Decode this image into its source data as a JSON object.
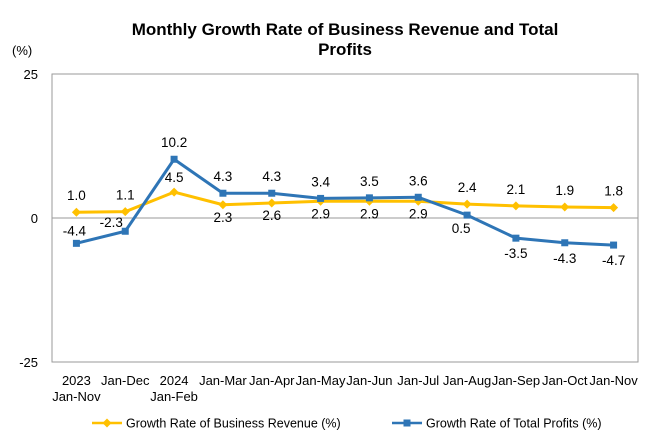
{
  "chart_data": {
    "type": "line",
    "title_lines": [
      "Monthly Growth Rate of Business Revenue and Total",
      "Profits"
    ],
    "ylabel": "(%)",
    "ylim": [
      -25,
      25
    ],
    "yticks": [
      "25",
      "0",
      "-25"
    ],
    "categories": [
      [
        "2023",
        "Jan-Nov"
      ],
      [
        "Jan-Dec"
      ],
      [
        "2024",
        "Jan-Feb"
      ],
      [
        "Jan-Mar"
      ],
      [
        "Jan-Apr"
      ],
      [
        "Jan-May"
      ],
      [
        "Jan-Jun"
      ],
      [
        "Jan-Jul"
      ],
      [
        "Jan-Aug"
      ],
      [
        "Jan-Sep"
      ],
      [
        "Jan-Oct"
      ],
      [
        "Jan-Nov"
      ]
    ],
    "series": [
      {
        "name": "Growth Rate of Business Revenue (%)",
        "color": "#FFC000",
        "marker": "diamond",
        "values": [
          1.0,
          1.1,
          4.5,
          2.3,
          2.6,
          2.9,
          2.9,
          2.9,
          2.4,
          2.1,
          1.9,
          1.8
        ],
        "labels": [
          "1.0",
          "1.1",
          "4.5",
          "2.3",
          "2.6",
          "2.9",
          "2.9",
          "2.9",
          "2.4",
          "2.1",
          "1.9",
          "1.8"
        ]
      },
      {
        "name": "Growth Rate of Total Profits (%)",
        "color": "#2E75B6",
        "marker": "square",
        "values": [
          -4.4,
          -2.3,
          10.2,
          4.3,
          4.3,
          3.4,
          3.5,
          3.6,
          0.5,
          -3.5,
          -4.3,
          -4.7
        ],
        "labels": [
          "-4.4",
          "-2.3",
          "10.2",
          "4.3",
          "4.3",
          "3.4",
          "3.5",
          "3.6",
          "0.5",
          "-3.5",
          "-4.3",
          "-4.7"
        ]
      }
    ],
    "grid": false,
    "legend_position": "bottom"
  }
}
